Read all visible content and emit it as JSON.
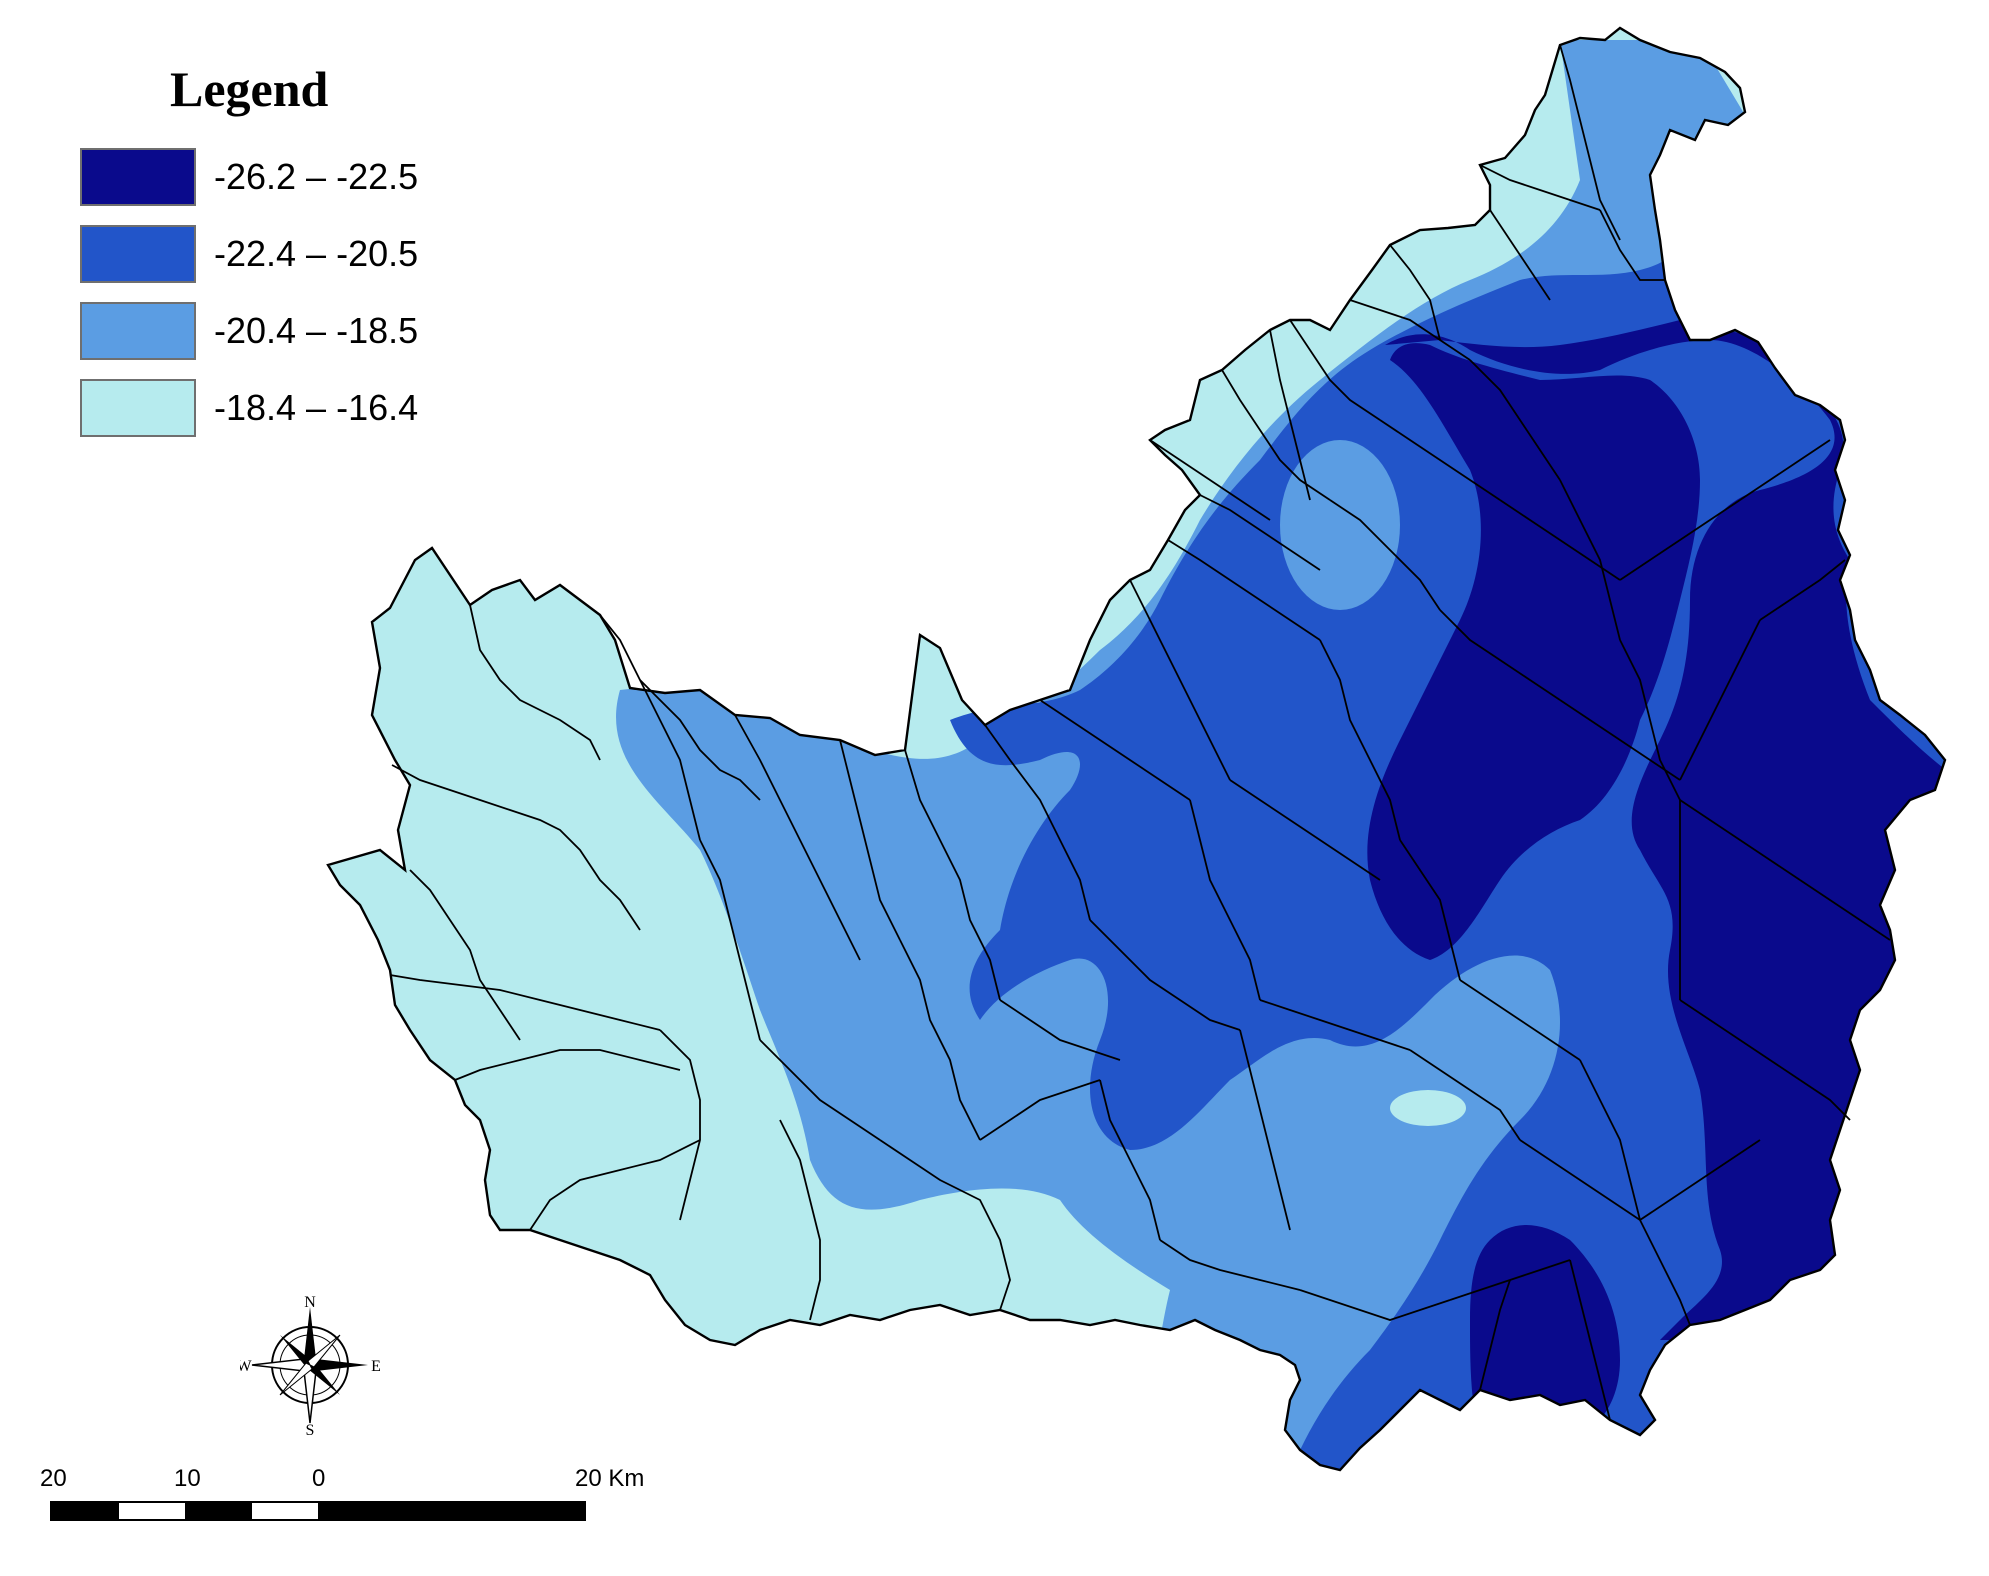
{
  "legend": {
    "title": "Legend",
    "classes": [
      {
        "label": "-26.2 – -22.5",
        "color": "#0a0a8c"
      },
      {
        "label": "-22.4 – -20.5",
        "color": "#2255c9"
      },
      {
        "label": "-20.4 – -18.5",
        "color": "#5b9de3"
      },
      {
        "label": "-18.4 – -16.4",
        "color": "#b6ebee"
      }
    ]
  },
  "north_arrow": {
    "icon": "compass-rose-icon",
    "n": "N",
    "s": "S",
    "e": "E",
    "w": "W"
  },
  "scale_bar": {
    "labels": [
      "20",
      "10",
      "0",
      "20 Km"
    ],
    "segments": [
      "black",
      "white",
      "black",
      "white",
      "black",
      "black",
      "black",
      "black"
    ]
  },
  "map": {
    "boundary_color": "#000000"
  }
}
